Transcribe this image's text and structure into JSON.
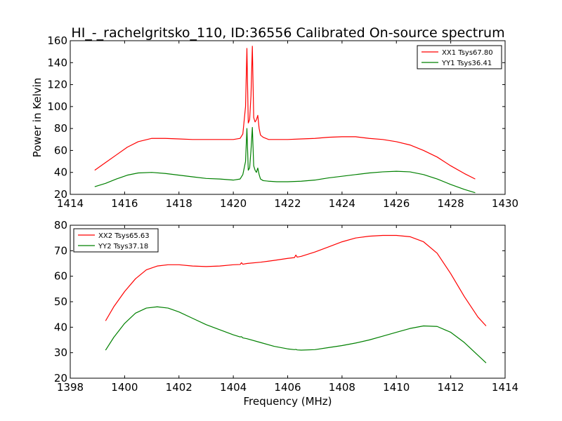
{
  "figure": {
    "title": "HI_-_rachelgritsko_110, ID:36556 Calibrated On-source spectrum"
  },
  "chart_data": [
    {
      "type": "line",
      "ylabel": "Power in Kelvin",
      "xlabel": "",
      "xlim": [
        1414,
        1430
      ],
      "ylim": [
        20,
        160
      ],
      "xticks": [
        "1414",
        "1416",
        "1418",
        "1420",
        "1422",
        "1424",
        "1426",
        "1428",
        "1430"
      ],
      "yticks": [
        "20",
        "40",
        "60",
        "80",
        "100",
        "120",
        "140",
        "160"
      ],
      "legend_position": "top-right",
      "grid": false,
      "series": [
        {
          "name": "XX1 Tsys67.80",
          "color": "#ff0000",
          "x": [
            1414.9,
            1415.3,
            1415.7,
            1416.1,
            1416.5,
            1417.0,
            1417.5,
            1418.0,
            1418.5,
            1419.0,
            1419.5,
            1420.0,
            1420.25,
            1420.35,
            1420.45,
            1420.5,
            1420.55,
            1420.6,
            1420.65,
            1420.7,
            1420.75,
            1420.8,
            1420.85,
            1420.9,
            1420.95,
            1421.0,
            1421.1,
            1421.3,
            1421.6,
            1422.0,
            1422.5,
            1423.0,
            1423.5,
            1424.0,
            1424.5,
            1425.0,
            1425.5,
            1426.0,
            1426.5,
            1427.0,
            1427.5,
            1428.0,
            1428.5,
            1428.9
          ],
          "y": [
            42,
            49,
            56,
            63,
            68,
            71,
            71,
            70.5,
            70,
            70,
            70,
            70,
            71,
            75,
            100,
            153,
            85,
            88,
            110,
            155,
            90,
            86,
            88,
            92,
            80,
            74,
            72,
            70,
            70,
            70,
            70.5,
            71,
            72,
            72.5,
            72.5,
            71,
            70,
            68,
            65,
            60,
            54,
            46,
            39,
            34
          ]
        },
        {
          "name": "YY1 Tsys36.41",
          "color": "#008000",
          "x": [
            1414.9,
            1415.3,
            1415.7,
            1416.1,
            1416.5,
            1417.0,
            1417.5,
            1418.0,
            1418.5,
            1419.0,
            1419.5,
            1420.0,
            1420.25,
            1420.35,
            1420.45,
            1420.5,
            1420.55,
            1420.6,
            1420.65,
            1420.7,
            1420.75,
            1420.8,
            1420.85,
            1420.9,
            1420.95,
            1421.0,
            1421.1,
            1421.3,
            1421.6,
            1422.0,
            1422.5,
            1423.0,
            1423.5,
            1424.0,
            1424.5,
            1425.0,
            1425.5,
            1426.0,
            1426.5,
            1427.0,
            1427.5,
            1428.0,
            1428.5,
            1428.9
          ],
          "y": [
            27,
            30,
            34,
            37.5,
            39.5,
            40,
            39,
            37.5,
            36,
            34.5,
            34,
            33,
            34,
            38,
            50,
            80,
            42,
            44,
            60,
            81,
            46,
            42,
            40,
            44,
            38,
            34,
            32.5,
            32,
            31.5,
            31.5,
            32,
            33,
            35,
            36.5,
            38,
            39.5,
            40.5,
            41,
            40.5,
            38,
            34,
            29,
            24.5,
            21.5
          ]
        }
      ]
    },
    {
      "type": "line",
      "ylabel": "",
      "xlabel": "Frequency (MHz)",
      "xlim": [
        1398,
        1414
      ],
      "ylim": [
        20,
        80
      ],
      "xticks": [
        "1398",
        "1400",
        "1402",
        "1404",
        "1406",
        "1408",
        "1410",
        "1412",
        "1414"
      ],
      "yticks": [
        "20",
        "30",
        "40",
        "50",
        "60",
        "70",
        "80"
      ],
      "legend_position": "top-left",
      "grid": false,
      "series": [
        {
          "name": "XX2 Tsys65.63",
          "color": "#ff0000",
          "x": [
            1399.3,
            1399.6,
            1400.0,
            1400.4,
            1400.8,
            1401.2,
            1401.6,
            1402.0,
            1402.5,
            1403.0,
            1403.5,
            1404.0,
            1404.25,
            1404.3,
            1404.35,
            1404.5,
            1405.0,
            1405.5,
            1406.0,
            1406.25,
            1406.3,
            1406.35,
            1406.5,
            1407.0,
            1407.5,
            1408.0,
            1408.5,
            1409.0,
            1409.5,
            1410.0,
            1410.5,
            1411.0,
            1411.5,
            1412.0,
            1412.5,
            1413.0,
            1413.3
          ],
          "y": [
            42.5,
            48,
            54,
            59,
            62.5,
            64,
            64.5,
            64.5,
            64,
            63.8,
            64,
            64.5,
            64.6,
            65.3,
            64.7,
            65,
            65.5,
            66.2,
            67,
            67.3,
            68.3,
            67.5,
            67.8,
            69.5,
            71.5,
            73.5,
            75,
            75.7,
            76,
            76,
            75.5,
            73.5,
            69,
            61,
            52,
            44,
            40.5
          ]
        },
        {
          "name": "YY2 Tsys37.18",
          "color": "#008000",
          "x": [
            1399.3,
            1399.6,
            1400.0,
            1400.4,
            1400.8,
            1401.2,
            1401.6,
            1402.0,
            1402.5,
            1403.0,
            1403.5,
            1404.0,
            1404.25,
            1404.3,
            1404.35,
            1404.5,
            1405.0,
            1405.5,
            1406.0,
            1406.25,
            1406.3,
            1406.35,
            1406.5,
            1407.0,
            1407.5,
            1408.0,
            1408.5,
            1409.0,
            1409.5,
            1410.0,
            1410.5,
            1411.0,
            1411.5,
            1412.0,
            1412.5,
            1413.0,
            1413.3
          ],
          "y": [
            31,
            36,
            41.5,
            45.5,
            47.5,
            48,
            47.5,
            46,
            43.5,
            41,
            39,
            37,
            36.2,
            36.3,
            35.8,
            35.5,
            34,
            32.5,
            31.5,
            31.2,
            31.3,
            31.1,
            31,
            31.2,
            32,
            32.8,
            33.8,
            35,
            36.5,
            38,
            39.5,
            40.5,
            40.3,
            38,
            34,
            29,
            26
          ]
        }
      ]
    }
  ]
}
